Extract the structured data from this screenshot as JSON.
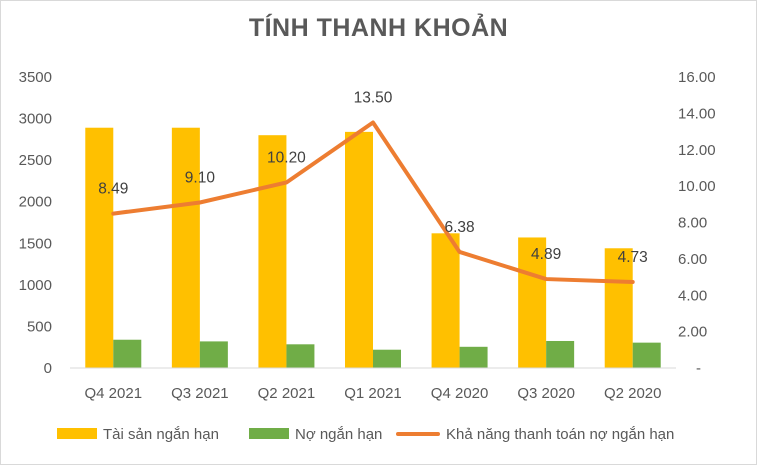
{
  "chart_data": {
    "type": "bar",
    "title": "TÍNH THANH KHOẢN",
    "categories": [
      "Q4 2021",
      "Q3 2021",
      "Q2 2021",
      "Q1 2021",
      "Q4 2020",
      "Q3 2020",
      "Q2 2020"
    ],
    "series": [
      {
        "name": "Tài sản ngắn hạn",
        "type": "bar",
        "axis": "left",
        "color": "#FFC000",
        "values": [
          2890,
          2890,
          2800,
          2840,
          1620,
          1570,
          1440
        ]
      },
      {
        "name": "Nợ ngắn hạn",
        "type": "bar",
        "axis": "left",
        "color": "#70AD47",
        "values": [
          340,
          320,
          285,
          220,
          255,
          325,
          305
        ]
      },
      {
        "name": "Khả năng thanh toán nợ ngắn hạn",
        "type": "line",
        "axis": "right",
        "color": "#ED7D31",
        "values": [
          8.49,
          9.1,
          10.2,
          13.5,
          6.38,
          4.89,
          4.73
        ],
        "labels": [
          "8.49",
          "9.10",
          "10.20",
          "13.50",
          "6.38",
          "4.89",
          "4.73"
        ]
      }
    ],
    "left_axis": {
      "range": [
        0,
        3500
      ],
      "ticks": [
        "0",
        "500",
        "1000",
        "1500",
        "2000",
        "2500",
        "3000",
        "3500"
      ]
    },
    "right_axis": {
      "range": [
        0,
        16
      ],
      "ticks": [
        "-",
        "2.00",
        "4.00",
        "6.00",
        "8.00",
        "10.00",
        "12.00",
        "14.00",
        "16.00"
      ]
    },
    "grid": false,
    "legend": "bottom"
  }
}
